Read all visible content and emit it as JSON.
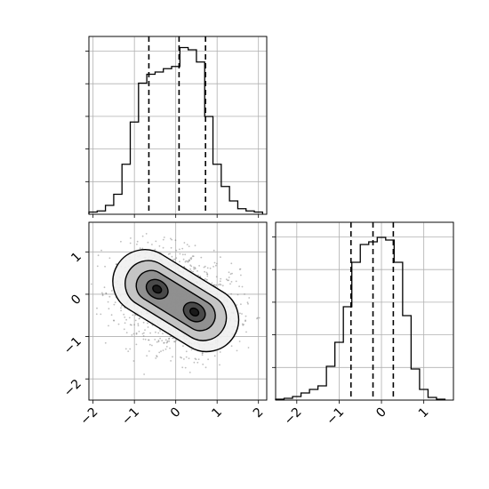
{
  "chart_data": [
    {
      "type": "bar",
      "name": "marginal-x",
      "bin_edges": [
        -2.1,
        -1.9,
        -1.7,
        -1.5,
        -1.3,
        -1.1,
        -0.9,
        -0.7,
        -0.5,
        -0.3,
        -0.1,
        0.1,
        0.3,
        0.5,
        0.7,
        0.9,
        1.1,
        1.3,
        1.5,
        1.7,
        1.9,
        2.1
      ],
      "values": [
        2,
        3,
        8,
        18,
        45,
        83,
        118,
        126,
        128,
        131,
        133,
        150,
        148,
        137,
        88,
        45,
        25,
        12,
        5,
        3,
        2
      ],
      "quantiles": [
        -0.65,
        0.08,
        0.72
      ],
      "xlim": [
        -2.1,
        2.2
      ],
      "ylim": [
        0,
        160
      ],
      "xticks": [
        -2,
        -1,
        0,
        1,
        2
      ],
      "grid": true
    },
    {
      "type": "heatmap",
      "name": "joint-2d",
      "xlim": [
        -2.1,
        2.2
      ],
      "ylim": [
        -2.5,
        1.7
      ],
      "xticks": [
        -2,
        -1,
        0,
        1,
        2
      ],
      "yticks": [
        -2,
        -1,
        0,
        1
      ],
      "xtick_labels": [
        "−2",
        "−1",
        "0",
        "1",
        "2"
      ],
      "ytick_labels": [
        "−2",
        "−1",
        "0",
        "1"
      ],
      "modes": [
        {
          "x": -0.45,
          "y": 0.12
        },
        {
          "x": 0.45,
          "y": -0.42
        }
      ],
      "contour_levels": [
        {
          "level": 1,
          "shade": "#f0f0f0"
        },
        {
          "level": 2,
          "shade": "#c0c0c0"
        },
        {
          "level": 3,
          "shade": "#8a8a8a"
        },
        {
          "level": 4,
          "shade": "#4a4a4a"
        },
        {
          "level": 5,
          "shade": "#1a1a1a"
        }
      ],
      "grid": true
    },
    {
      "type": "bar",
      "name": "marginal-y",
      "bin_edges": [
        -2.5,
        -2.3,
        -2.1,
        -1.9,
        -1.7,
        -1.5,
        -1.3,
        -1.1,
        -0.9,
        -0.7,
        -0.5,
        -0.3,
        -0.1,
        0.1,
        0.3,
        0.5,
        0.7,
        0.9,
        1.1,
        1.3,
        1.5
      ],
      "values": [
        1,
        2,
        4,
        8,
        12,
        16,
        38,
        65,
        105,
        155,
        175,
        178,
        183,
        180,
        155,
        95,
        35,
        12,
        3,
        1
      ],
      "quantiles": [
        -0.72,
        -0.2,
        0.28
      ],
      "xlim": [
        -2.5,
        1.7
      ],
      "ylim": [
        0,
        200
      ],
      "xticks": [
        -2,
        -1,
        0,
        1
      ],
      "xtick_labels": [
        "−2",
        "−1",
        "0",
        "1"
      ],
      "grid": true
    }
  ]
}
